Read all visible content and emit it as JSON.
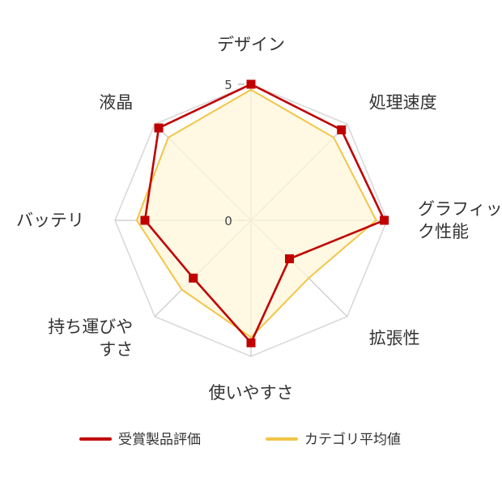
{
  "chart_data": {
    "type": "radar",
    "categories": [
      "デザイン",
      "処理速度",
      "グラフィック性能",
      "拡張性",
      "使いやすさ",
      "持ち運びやすさ",
      "バッテリ",
      "液晶"
    ],
    "category_lines": [
      [
        "デザイン"
      ],
      [
        "処理速度"
      ],
      [
        "グラフィッ",
        "ク性能"
      ],
      [
        "拡張性"
      ],
      [
        "使いやすさ"
      ],
      [
        "持ち運びや",
        "すさ"
      ],
      [
        "バッテリ"
      ],
      [
        "液晶"
      ]
    ],
    "series": [
      {
        "name": "受賞製品評価",
        "color": "#C00000",
        "values": [
          5.0,
          4.7,
          4.9,
          2.0,
          4.5,
          3.0,
          3.9,
          4.8
        ]
      },
      {
        "name": "カテゴリ平均値",
        "color": "#F2C546",
        "values": [
          4.8,
          4.3,
          4.6,
          3.0,
          4.3,
          3.6,
          4.2,
          4.3
        ]
      }
    ],
    "ticks": [
      "0",
      "5"
    ],
    "rlim": [
      0,
      5
    ],
    "grid": true,
    "legend_position": "bottom"
  }
}
